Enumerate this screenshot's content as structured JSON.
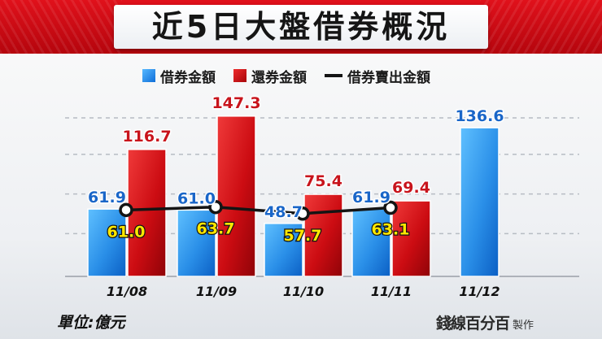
{
  "title": "近5日大盤借券概況",
  "unit_label": "單位:億元",
  "watermark": {
    "brand": "錢線百分百",
    "suffix": "製作"
  },
  "colors": {
    "blue": "#1f8cf0",
    "red": "#d40f16",
    "line": "#141414",
    "title_band": "#d10a14"
  },
  "chart_data": {
    "type": "bar",
    "categories": [
      "11/08",
      "11/09",
      "11/10",
      "11/11",
      "11/12"
    ],
    "series": [
      {
        "name": "借券金額",
        "values": [
          61.9,
          61.0,
          48.7,
          61.9,
          136.6
        ],
        "labels": [
          "61.9",
          "61.0",
          "48.7",
          "61.9",
          "136.6"
        ]
      },
      {
        "name": "還券金額",
        "values": [
          116.7,
          147.3,
          75.4,
          69.4,
          null
        ],
        "labels": [
          "116.7",
          "147.3",
          "75.4",
          "69.4",
          ""
        ]
      },
      {
        "name": "借券賣出金額",
        "chart_type": "line",
        "values": [
          61.0,
          63.7,
          57.7,
          63.1,
          null
        ],
        "labels": [
          "61.0",
          "63.7",
          "57.7",
          "63.1",
          ""
        ]
      }
    ],
    "title": "近5日大盤借券概況",
    "ylabel": "單位:億元",
    "ylim": [
      0,
      160
    ],
    "grid": true,
    "legend": "top-center"
  }
}
